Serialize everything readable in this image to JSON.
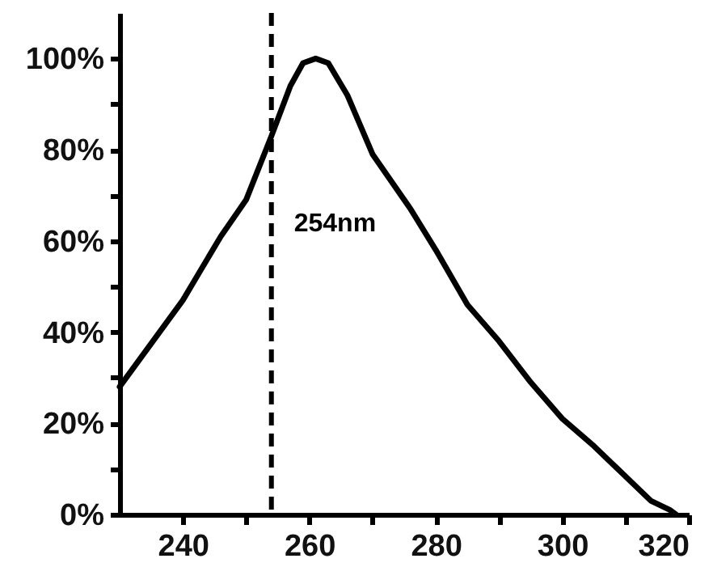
{
  "chart_data": {
    "type": "line",
    "x": [
      230,
      240,
      246,
      250,
      254,
      257,
      259,
      261,
      263,
      266,
      270,
      276,
      280,
      285,
      290,
      295,
      300,
      305,
      311,
      314,
      317,
      318
    ],
    "series": [
      {
        "color": "#000000",
        "values": [
          28,
          47,
          61,
          69,
          83,
          94,
          99,
          100,
          99,
          92,
          79,
          67,
          58,
          46,
          38,
          29,
          21,
          15,
          7,
          3,
          1,
          0
        ]
      }
    ],
    "xlim": [
      230,
      320
    ],
    "xticks": [
      240,
      {
        "value": 250,
        "label": null
      },
      260,
      {
        "value": 270,
        "label": null
      },
      280,
      {
        "value": 290,
        "label": null
      },
      300,
      {
        "value": 310,
        "label": null
      },
      320
    ],
    "ylim": [
      0,
      110
    ],
    "yticks": [
      {
        "value": 0,
        "label": "0%"
      },
      {
        "value": 10,
        "label": null
      },
      {
        "value": 20,
        "label": "20%"
      },
      {
        "value": 30,
        "label": null
      },
      {
        "value": 40,
        "label": "40%"
      },
      {
        "value": 50,
        "label": null
      },
      {
        "value": 60,
        "label": "60%"
      },
      {
        "value": 70,
        "label": null
      },
      {
        "value": 80,
        "label": "80%"
      },
      {
        "value": 90,
        "label": null
      },
      {
        "value": 100,
        "label": "100%"
      }
    ],
    "ref_lines": [
      {
        "axis": "x",
        "value": 254,
        "label": "254nm",
        "color": "#000000",
        "line_style": "dashed"
      }
    ],
    "grid": false,
    "marker": "none",
    "line_style": "solid"
  }
}
